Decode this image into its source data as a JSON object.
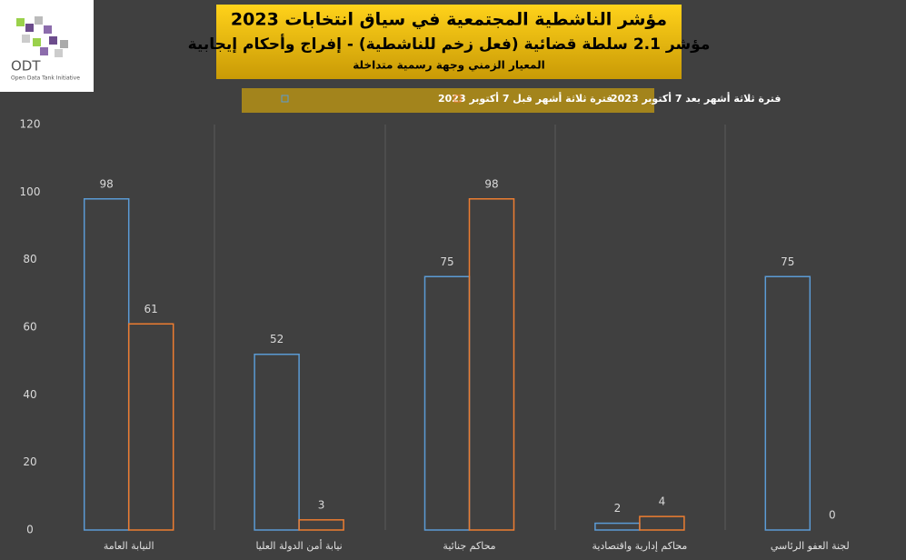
{
  "logo": {
    "name": "ODT",
    "subtitle": "Open Data Tank Initiative"
  },
  "chart_data": {
    "type": "bar",
    "title": "مؤشر الناشطية المجتمعية في سياق انتخابات 2023",
    "subtitle": "مؤشر 2.1 سلطة قضائية (فعل زخم للناشطية) - إفراج وأحكام إيجابية",
    "note": "المعيار الزمني وجهة رسمية متداخلة",
    "categories": [
      "النيابة العامة",
      "نيابة أمن الدولة العليا",
      "محاكم جنائية",
      "محاكم إدارية واقتصادية",
      "لجنة العفو الرئاسي"
    ],
    "series": [
      {
        "name": "فترة ثلاثة أشهر قبل 7 أكتوبر 2023",
        "color": "#5b9bd5",
        "values": [
          98,
          52,
          75,
          2,
          75
        ]
      },
      {
        "name": "فترة ثلاثة أشهر بعد 7 أكتوبر 2023",
        "color": "#ed7d31",
        "values": [
          61,
          3,
          98,
          4,
          0
        ]
      }
    ],
    "ylim": [
      0,
      120
    ],
    "yticks": [
      0,
      20,
      40,
      60,
      80,
      100,
      120
    ]
  }
}
